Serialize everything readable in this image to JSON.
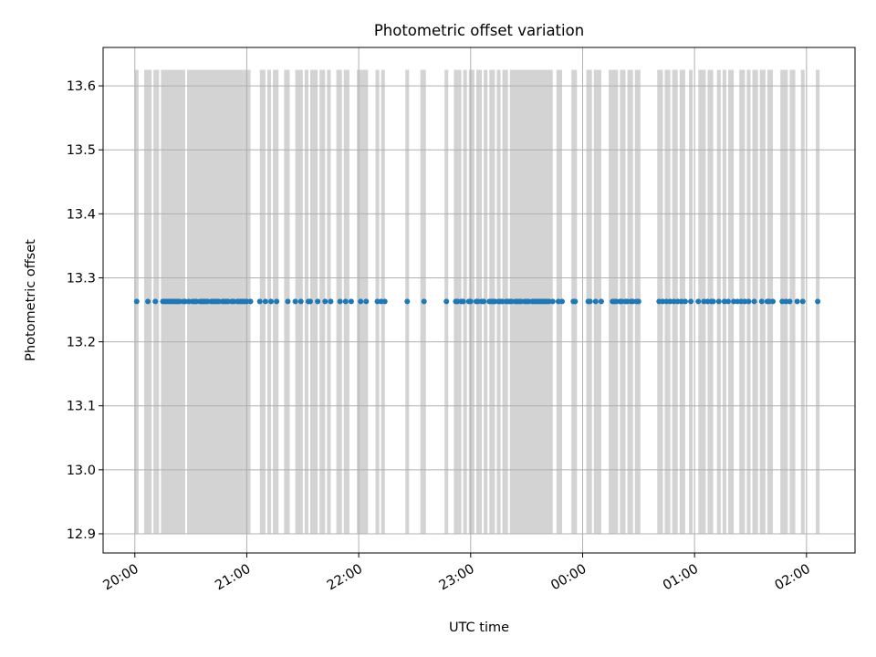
{
  "chart_data": {
    "type": "scatter",
    "title": "Photometric offset variation",
    "xlabel": "UTC time",
    "ylabel": "Photometric offset",
    "xlim": [
      "19:43",
      "02:26"
    ],
    "ylim": [
      12.87,
      13.66
    ],
    "x_ticks": [
      "20:00",
      "21:00",
      "22:00",
      "23:00",
      "00:00",
      "01:00",
      "02:00"
    ],
    "y_ticks": [
      "12.9",
      "13.0",
      "13.1",
      "13.2",
      "13.3",
      "13.4",
      "13.5",
      "13.6"
    ],
    "grid": true,
    "band_range": [
      12.9,
      13.625
    ],
    "series": [
      {
        "color": "#1f77b4",
        "y": 13.263,
        "x": [
          "20:01",
          "20:07",
          "20:11",
          "20:15",
          "20:16",
          "20:17",
          "20:18",
          "20:19",
          "20:20",
          "20:21",
          "20:22",
          "20:23",
          "20:24",
          "20:26",
          "20:27",
          "20:29",
          "20:31",
          "20:32",
          "20:33",
          "20:35",
          "20:36",
          "20:37",
          "20:38",
          "20:39",
          "20:41",
          "20:42",
          "20:43",
          "20:44",
          "20:45",
          "20:47",
          "20:48",
          "20:49",
          "20:50",
          "20:52",
          "20:53",
          "20:55",
          "20:56",
          "20:57",
          "20:58",
          "20:59",
          "21:00",
          "21:02",
          "21:07",
          "21:10",
          "21:13",
          "21:16",
          "21:22",
          "21:26",
          "21:29",
          "21:33",
          "21:34",
          "21:38",
          "21:42",
          "21:45",
          "21:50",
          "21:53",
          "21:56",
          "22:01",
          "22:04",
          "22:10",
          "22:12",
          "22:14",
          "22:26",
          "22:35",
          "22:47",
          "22:52",
          "22:53",
          "22:55",
          "22:56",
          "22:59",
          "23:00",
          "23:03",
          "23:04",
          "23:06",
          "23:07",
          "23:10",
          "23:11",
          "23:12",
          "23:13",
          "23:15",
          "23:16",
          "23:17",
          "23:19",
          "23:20",
          "23:21",
          "23:22",
          "23:24",
          "23:25",
          "23:26",
          "23:27",
          "23:29",
          "23:30",
          "23:31",
          "23:33",
          "23:34",
          "23:35",
          "23:36",
          "23:37",
          "23:38",
          "23:39",
          "23:40",
          "23:41",
          "23:42",
          "23:44",
          "23:47",
          "23:49",
          "23:55",
          "23:56",
          "00:03",
          "00:04",
          "00:07",
          "00:10",
          "00:16",
          "00:17",
          "00:18",
          "00:20",
          "00:21",
          "00:23",
          "00:24",
          "00:26",
          "00:27",
          "00:29",
          "00:30",
          "00:41",
          "00:43",
          "00:45",
          "00:47",
          "00:49",
          "00:51",
          "00:53",
          "00:55",
          "00:58",
          "01:02",
          "01:05",
          "01:07",
          "01:09",
          "01:10",
          "01:13",
          "01:16",
          "01:18",
          "01:21",
          "01:23",
          "01:25",
          "01:27",
          "01:29",
          "01:32",
          "01:36",
          "01:39",
          "01:40",
          "01:42",
          "01:47",
          "01:49",
          "01:51",
          "01:55",
          "01:58",
          "02:06"
        ]
      }
    ],
    "bands": [
      [
        "20:00",
        "20:02"
      ],
      [
        "20:05",
        "20:09"
      ],
      [
        "20:10",
        "20:13"
      ],
      [
        "20:14",
        "20:27"
      ],
      [
        "20:28",
        "20:58"
      ],
      [
        "20:58",
        "21:02"
      ],
      [
        "21:07",
        "21:10"
      ],
      [
        "21:11",
        "21:13"
      ],
      [
        "21:14",
        "21:17"
      ],
      [
        "21:20",
        "21:23"
      ],
      [
        "21:26",
        "21:30"
      ],
      [
        "21:31",
        "21:33"
      ],
      [
        "21:34",
        "21:38"
      ],
      [
        "21:39",
        "21:42"
      ],
      [
        "21:43",
        "21:45"
      ],
      [
        "21:48",
        "21:51"
      ],
      [
        "21:52",
        "21:55"
      ],
      [
        "21:59",
        "22:05"
      ],
      [
        "22:09",
        "22:11"
      ],
      [
        "22:12",
        "22:14"
      ],
      [
        "22:25",
        "22:27"
      ],
      [
        "22:33",
        "22:36"
      ],
      [
        "22:46",
        "22:48"
      ],
      [
        "22:51",
        "22:55"
      ],
      [
        "22:56",
        "22:58"
      ],
      [
        "22:59",
        "23:02"
      ],
      [
        "23:03",
        "23:06"
      ],
      [
        "23:07",
        "23:09"
      ],
      [
        "23:10",
        "23:13"
      ],
      [
        "23:14",
        "23:16"
      ],
      [
        "23:17",
        "23:20"
      ],
      [
        "23:21",
        "23:44"
      ],
      [
        "23:46",
        "23:49"
      ],
      [
        "23:54",
        "23:57"
      ],
      [
        "00:02",
        "00:05"
      ],
      [
        "00:06",
        "00:10"
      ],
      [
        "00:14",
        "00:19"
      ],
      [
        "00:20",
        "00:23"
      ],
      [
        "00:24",
        "00:27"
      ],
      [
        "00:28",
        "00:31"
      ],
      [
        "00:40",
        "00:43"
      ],
      [
        "00:44",
        "00:47"
      ],
      [
        "00:48",
        "00:51"
      ],
      [
        "00:52",
        "00:55"
      ],
      [
        "00:57",
        "00:59"
      ],
      [
        "01:02",
        "01:06"
      ],
      [
        "01:07",
        "01:10"
      ],
      [
        "01:12",
        "01:14"
      ],
      [
        "01:15",
        "01:17"
      ],
      [
        "01:18",
        "01:21"
      ],
      [
        "01:24",
        "01:27"
      ],
      [
        "01:28",
        "01:30"
      ],
      [
        "01:31",
        "01:34"
      ],
      [
        "01:35",
        "01:38"
      ],
      [
        "01:39",
        "01:42"
      ],
      [
        "01:46",
        "01:50"
      ],
      [
        "01:51",
        "01:54"
      ],
      [
        "01:57",
        "01:59"
      ],
      [
        "02:05",
        "02:07"
      ]
    ],
    "colors": {
      "points": "#1f77b4",
      "bands": "#d3d3d3",
      "grid": "#b0b0b0"
    }
  }
}
